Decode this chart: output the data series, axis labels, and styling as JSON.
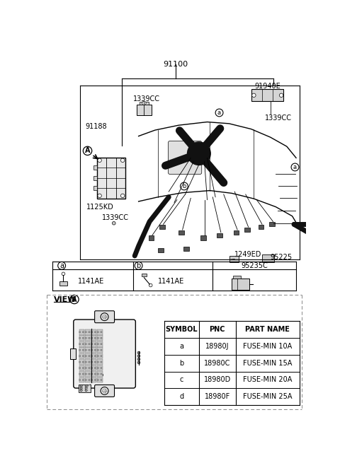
{
  "bg_color": "#ffffff",
  "line_color": "#000000",
  "gray": "#888888",
  "light_gray": "#cccccc",
  "dark": "#222222",
  "fig_width": 4.8,
  "fig_height": 6.55,
  "dpi": 100,
  "labels": {
    "main_part": "91100",
    "sub1": "91188",
    "sub2": "1125KD",
    "sub3_a": "1339CC",
    "sub3_b": "1339CC",
    "sub3_c": "1339CC",
    "sub4": "91940E",
    "sub5": "1249ED",
    "sub6": "95225",
    "legend_a": "1141AE",
    "legend_b": "1141AE",
    "legend_c": "95235C"
  },
  "table_headers": [
    "SYMBOL",
    "PNC",
    "PART NAME"
  ],
  "table_rows": [
    [
      "a",
      "18980J",
      "FUSE-MIN 10A"
    ],
    [
      "b",
      "18980C",
      "FUSE-MIN 15A"
    ],
    [
      "c",
      "18980D",
      "FUSE-MIN 20A"
    ],
    [
      "d",
      "18980F",
      "FUSE-MIN 25A"
    ]
  ]
}
